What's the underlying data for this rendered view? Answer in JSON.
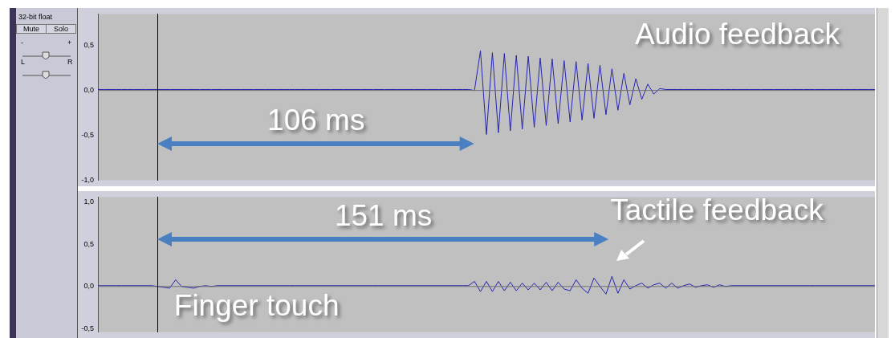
{
  "chart_data": [
    {
      "type": "other",
      "annotations": [
        "32-bit float",
        "Mute",
        "Solo",
        "-",
        "+",
        "L",
        "R"
      ]
    },
    {
      "type": "line",
      "ylim": [
        -1.0,
        0.85
      ],
      "tick_labels": "y",
      "marker": "none",
      "categories": [
        null,
        null,
        null,
        null,
        null,
        null,
        null,
        null,
        null,
        null,
        null,
        null,
        null,
        null,
        null,
        null,
        null,
        null,
        null,
        null,
        null,
        null,
        null,
        null,
        null,
        null,
        null,
        null,
        null,
        null,
        null,
        null,
        null,
        null,
        null,
        null,
        null,
        null,
        null,
        null,
        null,
        null,
        null,
        null,
        null,
        null,
        null,
        null,
        null,
        null,
        null,
        null,
        null,
        null,
        null,
        null,
        null,
        null,
        null,
        null,
        null,
        null,
        null,
        null,
        null,
        null,
        null,
        null,
        null,
        null,
        null,
        null,
        null,
        null,
        null,
        null,
        null,
        null,
        null,
        null,
        null,
        null,
        null,
        null,
        null,
        null,
        null,
        null,
        null,
        null,
        null,
        null,
        null,
        null,
        null,
        null,
        null,
        null,
        null,
        null,
        null,
        null,
        null,
        null,
        null,
        null,
        null,
        null,
        null,
        null,
        null,
        null,
        null,
        null,
        null,
        null,
        null,
        null,
        null,
        null,
        null,
        null,
        null,
        null,
        null,
        null,
        null,
        null,
        null,
        null,
        null
      ],
      "yticks": [
        {
          "value": 0.5,
          "label": "0,5"
        },
        {
          "value": 0,
          "label": "0,0"
        },
        {
          "value": -0.5,
          "label": "-0,5"
        },
        {
          "value": -1.0,
          "label": "-1,0"
        }
      ],
      "ref_lines": [
        {
          "axis": "y",
          "value": 0,
          "color": "#707070"
        }
      ],
      "annotations": [
        "Audio feedback",
        "106 ms"
      ],
      "series": [
        {
          "color": "#2424b0",
          "values": [
            0.01,
            0.01,
            0.01,
            0.01,
            0.01,
            0.01,
            0.01,
            0.01,
            0.01,
            0.01,
            0.01,
            0.01,
            0.01,
            0.01,
            0.01,
            0.01,
            0.01,
            0.01,
            0.01,
            0.01,
            0.01,
            0.01,
            0.01,
            0.01,
            0.01,
            0.01,
            0.01,
            0.01,
            0.01,
            0.01,
            0.01,
            0.01,
            0.01,
            0.01,
            0.01,
            0.01,
            0.01,
            0.01,
            0.01,
            0.01,
            0.01,
            0.01,
            0.01,
            0.01,
            0.01,
            0.01,
            0.01,
            0.01,
            0.01,
            0.01,
            0.01,
            0.01,
            0.01,
            0.01,
            0.01,
            0.01,
            0.01,
            0.01,
            0.01,
            0.01,
            0.01,
            0.01,
            0.01,
            0,
            0.44,
            -0.49,
            0.42,
            -0.47,
            0.41,
            -0.45,
            0.39,
            -0.43,
            0.38,
            -0.41,
            0.36,
            -0.39,
            0.35,
            -0.37,
            0.33,
            -0.35,
            0.32,
            -0.33,
            0.3,
            -0.31,
            0.28,
            -0.27,
            0.24,
            -0.22,
            0.19,
            -0.16,
            0.13,
            -0.1,
            0.07,
            -0.04,
            0.02,
            0.01,
            0.01,
            0.01,
            0.01,
            0.01,
            0.01,
            0.01,
            0.01,
            0.01,
            0.01,
            0.01,
            0.01,
            0.01,
            0.01,
            0.01,
            0.01,
            0.01,
            0.01,
            0.01,
            0.01,
            0.01,
            0.01,
            0.01,
            0.01,
            0.01,
            0.01,
            0.01,
            0.01,
            0.01,
            0.01,
            0.01,
            0.01,
            0.01,
            0.01,
            0.01,
            0.01
          ]
        }
      ]
    },
    {
      "type": "line",
      "ylim": [
        -0.54,
        1.06
      ],
      "tick_labels": "y",
      "marker": "none",
      "categories": [
        null,
        null,
        null,
        null,
        null,
        null,
        null,
        null,
        null,
        null,
        null,
        null,
        null,
        null,
        null,
        null,
        null,
        null,
        null,
        null,
        null,
        null,
        null,
        null,
        null,
        null,
        null,
        null,
        null,
        null,
        null,
        null,
        null,
        null,
        null,
        null,
        null,
        null,
        null,
        null,
        null,
        null,
        null,
        null,
        null,
        null,
        null,
        null,
        null,
        null,
        null,
        null,
        null,
        null,
        null,
        null,
        null,
        null,
        null,
        null,
        null,
        null,
        null,
        null,
        null,
        null,
        null,
        null,
        null,
        null,
        null,
        null,
        null,
        null,
        null,
        null,
        null,
        null,
        null,
        null,
        null,
        null,
        null,
        null,
        null,
        null,
        null,
        null,
        null,
        null,
        null,
        null,
        null,
        null,
        null,
        null,
        null,
        null,
        null,
        null,
        null,
        null,
        null,
        null,
        null,
        null,
        null,
        null,
        null,
        null,
        null,
        null,
        null,
        null,
        null,
        null,
        null,
        null,
        null,
        null,
        null,
        null,
        null,
        null,
        null,
        null,
        null,
        null,
        null,
        null,
        null
      ],
      "yticks": [
        {
          "value": 1.0,
          "label": "1,0"
        },
        {
          "value": 0.5,
          "label": "0,5"
        },
        {
          "value": 0,
          "label": "0,0"
        },
        {
          "value": -0.5,
          "label": "-0,5"
        }
      ],
      "ref_lines": [
        {
          "axis": "y",
          "value": 0,
          "color": "#707070"
        }
      ],
      "annotations": [
        "151 ms",
        "Tactile feedback",
        "Finger touch"
      ],
      "series": [
        {
          "color": "#2424b0",
          "values": [
            0.01,
            0.01,
            0.01,
            0.01,
            0.01,
            0.01,
            0.01,
            0.01,
            0.01,
            0.01,
            0,
            -0.01,
            -0.02,
            0.08,
            0,
            -0.01,
            -0.02,
            0,
            0.01,
            0,
            0.01,
            0.01,
            0.01,
            0.01,
            0.01,
            0.01,
            0.01,
            0.01,
            0.01,
            0.01,
            0.01,
            0.01,
            0.01,
            0.01,
            0.01,
            0.01,
            0.01,
            0.01,
            0.01,
            0.01,
            0.01,
            0.01,
            0.01,
            0.01,
            0.01,
            0.01,
            0.01,
            0.01,
            0.01,
            0.01,
            0.01,
            0.01,
            0.01,
            0.01,
            0.01,
            0.01,
            0.01,
            0.01,
            0.01,
            0.01,
            0.01,
            0.01,
            0.01,
            0.06,
            -0.06,
            0.06,
            -0.06,
            0.06,
            -0.05,
            0.05,
            -0.05,
            0.04,
            -0.04,
            0.04,
            -0.04,
            0.05,
            -0.05,
            0.05,
            -0.03,
            -0.05,
            0.08,
            -0.02,
            -0.08,
            0.1,
            0,
            -0.09,
            0.12,
            -0.08,
            0.08,
            -0.03,
            0.01,
            0.04,
            -0.02,
            0.02,
            0.04,
            -0.02,
            0.04,
            -0.02,
            0.01,
            0.03,
            -0.01,
            0.01,
            0.02,
            -0.01,
            0.02,
            0,
            0.01,
            0.01,
            0.01,
            0.01,
            0.01,
            0.01,
            0.01,
            0.01,
            0.01,
            0.01,
            0.01,
            0.01,
            0.01,
            0.01,
            0.01,
            0.01,
            0.01,
            0.01,
            0.01,
            0.01,
            0.01,
            0.01,
            0.01,
            0.01,
            0.01
          ]
        }
      ]
    }
  ]
}
